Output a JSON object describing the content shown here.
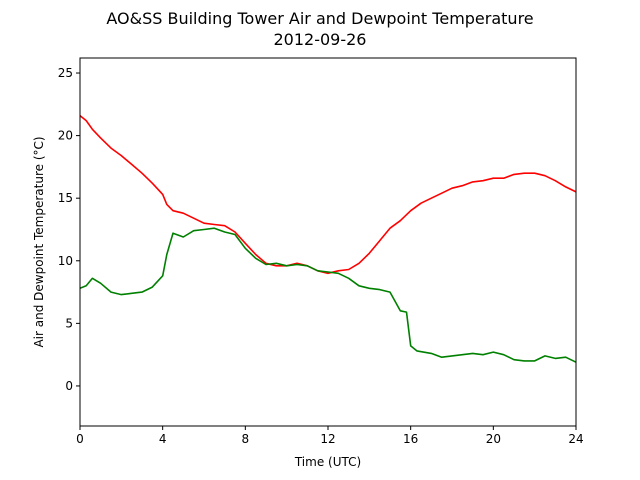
{
  "chart_data": {
    "type": "line",
    "title": "AO&SS Building Tower Air and Dewpoint Temperature",
    "subtitle": "2012-09-26",
    "xlabel": "Time (UTC)",
    "ylabel": "Air and Dewpoint Temperature (°C)",
    "xlim": [
      0,
      24
    ],
    "ylim": [
      -3.2,
      26.2
    ],
    "xticks": [
      0,
      4,
      8,
      12,
      16,
      20,
      24
    ],
    "xtick_labels": [
      "0",
      "4",
      "8",
      "12",
      "16",
      "20",
      "24"
    ],
    "yticks": [
      0,
      5,
      10,
      15,
      20,
      25
    ],
    "ytick_labels": [
      "0",
      "5",
      "10",
      "15",
      "20",
      "25"
    ],
    "grid": false,
    "legend": "none",
    "series": [
      {
        "color": "#ff0000",
        "x": [
          0,
          0.3,
          0.6,
          1,
          1.5,
          2,
          2.5,
          3,
          3.5,
          4,
          4.2,
          4.5,
          5,
          5.5,
          6,
          6.5,
          7,
          7.5,
          8,
          8.5,
          9,
          9.5,
          10,
          10.5,
          11,
          11.5,
          12,
          12.5,
          13,
          13.5,
          14,
          14.5,
          15,
          15.5,
          16,
          16.5,
          17,
          17.5,
          18,
          18.5,
          19,
          19.5,
          20,
          20.5,
          21,
          21.5,
          22,
          22.5,
          23,
          23.5,
          24
        ],
        "y": [
          21.6,
          21.2,
          20.5,
          19.8,
          19.0,
          18.4,
          17.7,
          17.0,
          16.2,
          15.3,
          14.5,
          14.0,
          13.8,
          13.4,
          13.0,
          12.9,
          12.8,
          12.3,
          11.4,
          10.5,
          9.8,
          9.6,
          9.6,
          9.8,
          9.6,
          9.2,
          9.0,
          9.2,
          9.3,
          9.8,
          10.6,
          11.6,
          12.6,
          13.2,
          14.0,
          14.6,
          15.0,
          15.4,
          15.8,
          16.0,
          16.3,
          16.4,
          16.6,
          16.6,
          16.9,
          17.0,
          17.0,
          16.8,
          16.4,
          15.9,
          15.5
        ]
      },
      {
        "color": "#008000",
        "x": [
          0,
          0.3,
          0.6,
          1,
          1.5,
          2,
          2.5,
          3,
          3.5,
          4,
          4.2,
          4.5,
          5,
          5.5,
          6,
          6.5,
          7,
          7.5,
          8,
          8.5,
          9,
          9.5,
          10,
          10.5,
          11,
          11.5,
          12,
          12.5,
          13,
          13.5,
          14,
          14.5,
          15,
          15.5,
          15.8,
          16,
          16.3,
          17,
          17.5,
          18,
          18.5,
          19,
          19.5,
          20,
          20.5,
          21,
          21.5,
          22,
          22.5,
          23,
          23.5,
          24
        ],
        "y": [
          7.8,
          8.0,
          8.6,
          8.2,
          7.5,
          7.3,
          7.4,
          7.5,
          7.9,
          8.8,
          10.5,
          12.2,
          11.9,
          12.4,
          12.5,
          12.6,
          12.3,
          12.1,
          11.0,
          10.2,
          9.7,
          9.8,
          9.6,
          9.7,
          9.6,
          9.2,
          9.1,
          9.0,
          8.6,
          8.0,
          7.8,
          7.7,
          7.5,
          6.0,
          5.9,
          3.2,
          2.8,
          2.6,
          2.3,
          2.4,
          2.5,
          2.6,
          2.5,
          2.7,
          2.5,
          2.1,
          2.0,
          2.0,
          2.4,
          2.2,
          2.3,
          1.9
        ]
      }
    ]
  }
}
